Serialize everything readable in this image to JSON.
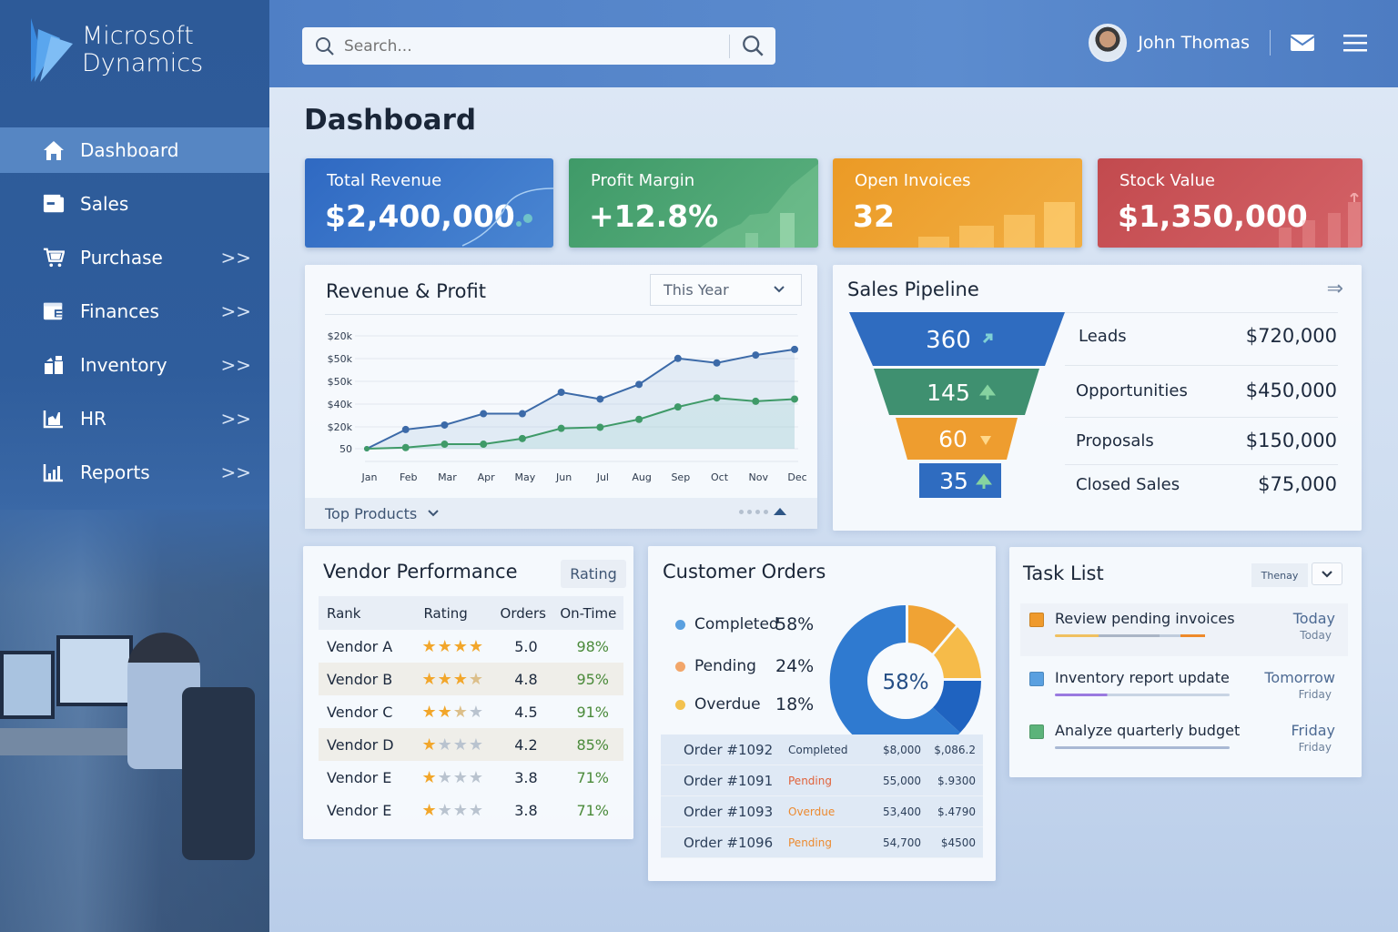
{
  "app": {
    "brand_line1": "Microsoft",
    "brand_line2": "Dynamics"
  },
  "sidebar": {
    "items": [
      {
        "label": "Dashboard",
        "icon": "home-icon",
        "active": true,
        "has_chevron": false
      },
      {
        "label": "Sales",
        "icon": "wallet-icon",
        "active": false,
        "has_chevron": false
      },
      {
        "label": "Purchase",
        "icon": "cart-icon",
        "active": false,
        "has_chevron": true
      },
      {
        "label": "Finances",
        "icon": "finance-icon",
        "active": false,
        "has_chevron": true
      },
      {
        "label": "Inventory",
        "icon": "boxes-icon",
        "active": false,
        "has_chevron": true
      },
      {
        "label": "HR",
        "icon": "hr-chart-icon",
        "active": false,
        "has_chevron": true
      },
      {
        "label": "Reports",
        "icon": "bar-chart-icon",
        "active": false,
        "has_chevron": true
      }
    ],
    "chevron_glyph": ">>"
  },
  "topbar": {
    "search_placeholder": "Search...",
    "user_name": "John Thomas",
    "icons": [
      "search-icon",
      "mail-icon",
      "hamburger-menu-icon"
    ]
  },
  "page": {
    "title": "Dashboard"
  },
  "kpis": [
    {
      "label": "Total Revenue",
      "value": "$2,400,000",
      "color": "#3573c8"
    },
    {
      "label": "Profit Margin",
      "value": "+12.8%",
      "color": "#46a070"
    },
    {
      "label": "Open Invoices",
      "value": "32",
      "color": "#ee9f2d"
    },
    {
      "label": "Stock Value",
      "value": "$1,350,000",
      "color": "#c9535a"
    }
  ],
  "revenue_card": {
    "title": "Revenue & Profit",
    "period_select": "This Year",
    "footer_label": "Top Products"
  },
  "chart_data": {
    "type": "line",
    "title": "Revenue & Profit",
    "categories": [
      "Jan",
      "Feb",
      "Mar",
      "Apr",
      "May",
      "Jun",
      "Jul",
      "Aug",
      "Sep",
      "Oct",
      "Nov",
      "Dec"
    ],
    "y_tick_labels": [
      "50",
      "$20k",
      "$40k",
      "$50k",
      "$50k",
      "$20k"
    ],
    "series": [
      {
        "name": "Revenue",
        "color": "#3c6aa8",
        "values": [
          0,
          17,
          21,
          31,
          31,
          50,
          44,
          57,
          80,
          76,
          83,
          88
        ]
      },
      {
        "name": "Profit",
        "color": "#3f9a68",
        "values": [
          0,
          1,
          4,
          4,
          9,
          18,
          19,
          26,
          37,
          45,
          42,
          44
        ]
      }
    ],
    "grid": true,
    "area_fill": true
  },
  "pipeline": {
    "title": "Sales Pipeline",
    "stages": [
      {
        "count": "360",
        "trend": "up-right",
        "label": "Leads",
        "amount": "$720,000",
        "color": "#2f6cc0"
      },
      {
        "count": "145",
        "trend": "up",
        "label": "Opportunities",
        "amount": "$450,000",
        "color": "#3f9070"
      },
      {
        "count": "60",
        "trend": "down-right",
        "label": "Proposals",
        "amount": "$150,000",
        "color": "#ee9d2f"
      },
      {
        "count": "35",
        "trend": "up",
        "label": "Closed Sales",
        "amount": "$75,000",
        "color": "#2f6cc0"
      }
    ]
  },
  "vendor": {
    "title": "Vendor Performance",
    "tag": "Rating",
    "headers": [
      "Rank",
      "Rating",
      "Orders",
      "On-Time"
    ],
    "rows": [
      {
        "name": "Vendor A",
        "stars": 4,
        "orders": "5.0",
        "ontime": "98%"
      },
      {
        "name": "Vendor B",
        "stars": 3,
        "orders": "4.8",
        "ontime": "95%"
      },
      {
        "name": "Vendor C",
        "stars": 2,
        "orders": "4.5",
        "ontime": "91%"
      },
      {
        "name": "Vendor D",
        "stars": 1,
        "orders": "4.2",
        "ontime": "85%"
      },
      {
        "name": "Vendor E",
        "stars": 1,
        "orders": "3.8",
        "ontime": "71%"
      },
      {
        "name": "Vendor E",
        "stars": 1,
        "orders": "3.8",
        "ontime": "71%"
      }
    ]
  },
  "orders": {
    "title": "Customer Orders",
    "center_label": "58%",
    "legend": [
      {
        "label": "Completed",
        "pct": "58%",
        "color": "#5aa0e0"
      },
      {
        "label": "Pending",
        "pct": "24%",
        "color": "#f2a66a"
      },
      {
        "label": "Overdue",
        "pct": "18%",
        "color": "#f3c24f"
      }
    ],
    "rows": [
      {
        "id": "Order #1092",
        "status": "Completed",
        "status_color": "#2c3f5a",
        "amount": "$8,000",
        "amount2": "$,086.2"
      },
      {
        "id": "Order #1091",
        "status": "Pending",
        "status_color": "#e0623a",
        "amount": "55,000",
        "amount2": "$.9300"
      },
      {
        "id": "Order #1093",
        "status": "Overdue",
        "status_color": "#ec8a2f",
        "amount": "53,400",
        "amount2": "$.4790"
      },
      {
        "id": "Order #1096",
        "status": "Pending",
        "status_color": "#ec8a2f",
        "amount": "54,700",
        "amount2": "$4500"
      }
    ]
  },
  "tasks": {
    "title": "Task List",
    "filter_label": "Thenay",
    "items": [
      {
        "title": "Review pending invoices",
        "due": "Today",
        "sub": "Today",
        "color": "#ef9a2c"
      },
      {
        "title": "Inventory report update",
        "due": "Tomorrow",
        "sub": "Friday",
        "color": "#5aa0e0"
      },
      {
        "title": "Analyze quarterly budget",
        "due": "Friday",
        "sub": "Friday",
        "color": "#5cb37a"
      }
    ]
  }
}
